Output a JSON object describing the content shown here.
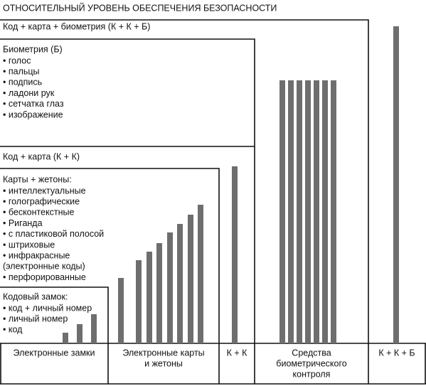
{
  "title": "ОТНОСИТЕЛЬНЫЙ УРОВЕНЬ ОБЕСПЕЧЕНИЯ БЕЗОПАСНОСТИ",
  "levels": [
    {
      "label": "Код + карта + биометрия (К + К + Б)",
      "items": []
    },
    {
      "label": "Биометрия (Б)",
      "items": [
        "• голос",
        "• пальцы",
        "• подпись",
        "• ладони рук",
        "• сетчатка глаз",
        "• изображение"
      ]
    },
    {
      "label": "Код + карта (К + К)",
      "items": []
    },
    {
      "label": "Карты + жетоны:",
      "items": [
        "• интеллектуальные",
        "• голографические",
        "• бесконтекстные",
        "• Риганда",
        "• с пластиковой полосой",
        "• штриховые",
        "• инфракрасные",
        "(электронные коды)",
        "• перфорированные"
      ]
    },
    {
      "label": "Кодовый замок:",
      "items": [
        "• код + личный номер",
        "• личный номер",
        "• код"
      ]
    }
  ],
  "columns": [
    {
      "lines": [
        "Электронные замки"
      ]
    },
    {
      "lines": [
        "Электронные карты",
        "и жетоны"
      ]
    },
    {
      "lines": [
        "К + К"
      ]
    },
    {
      "lines": [
        "Средства",
        "биометрического",
        "контроля"
      ]
    },
    {
      "lines": [
        "К + К + Б"
      ]
    }
  ]
}
